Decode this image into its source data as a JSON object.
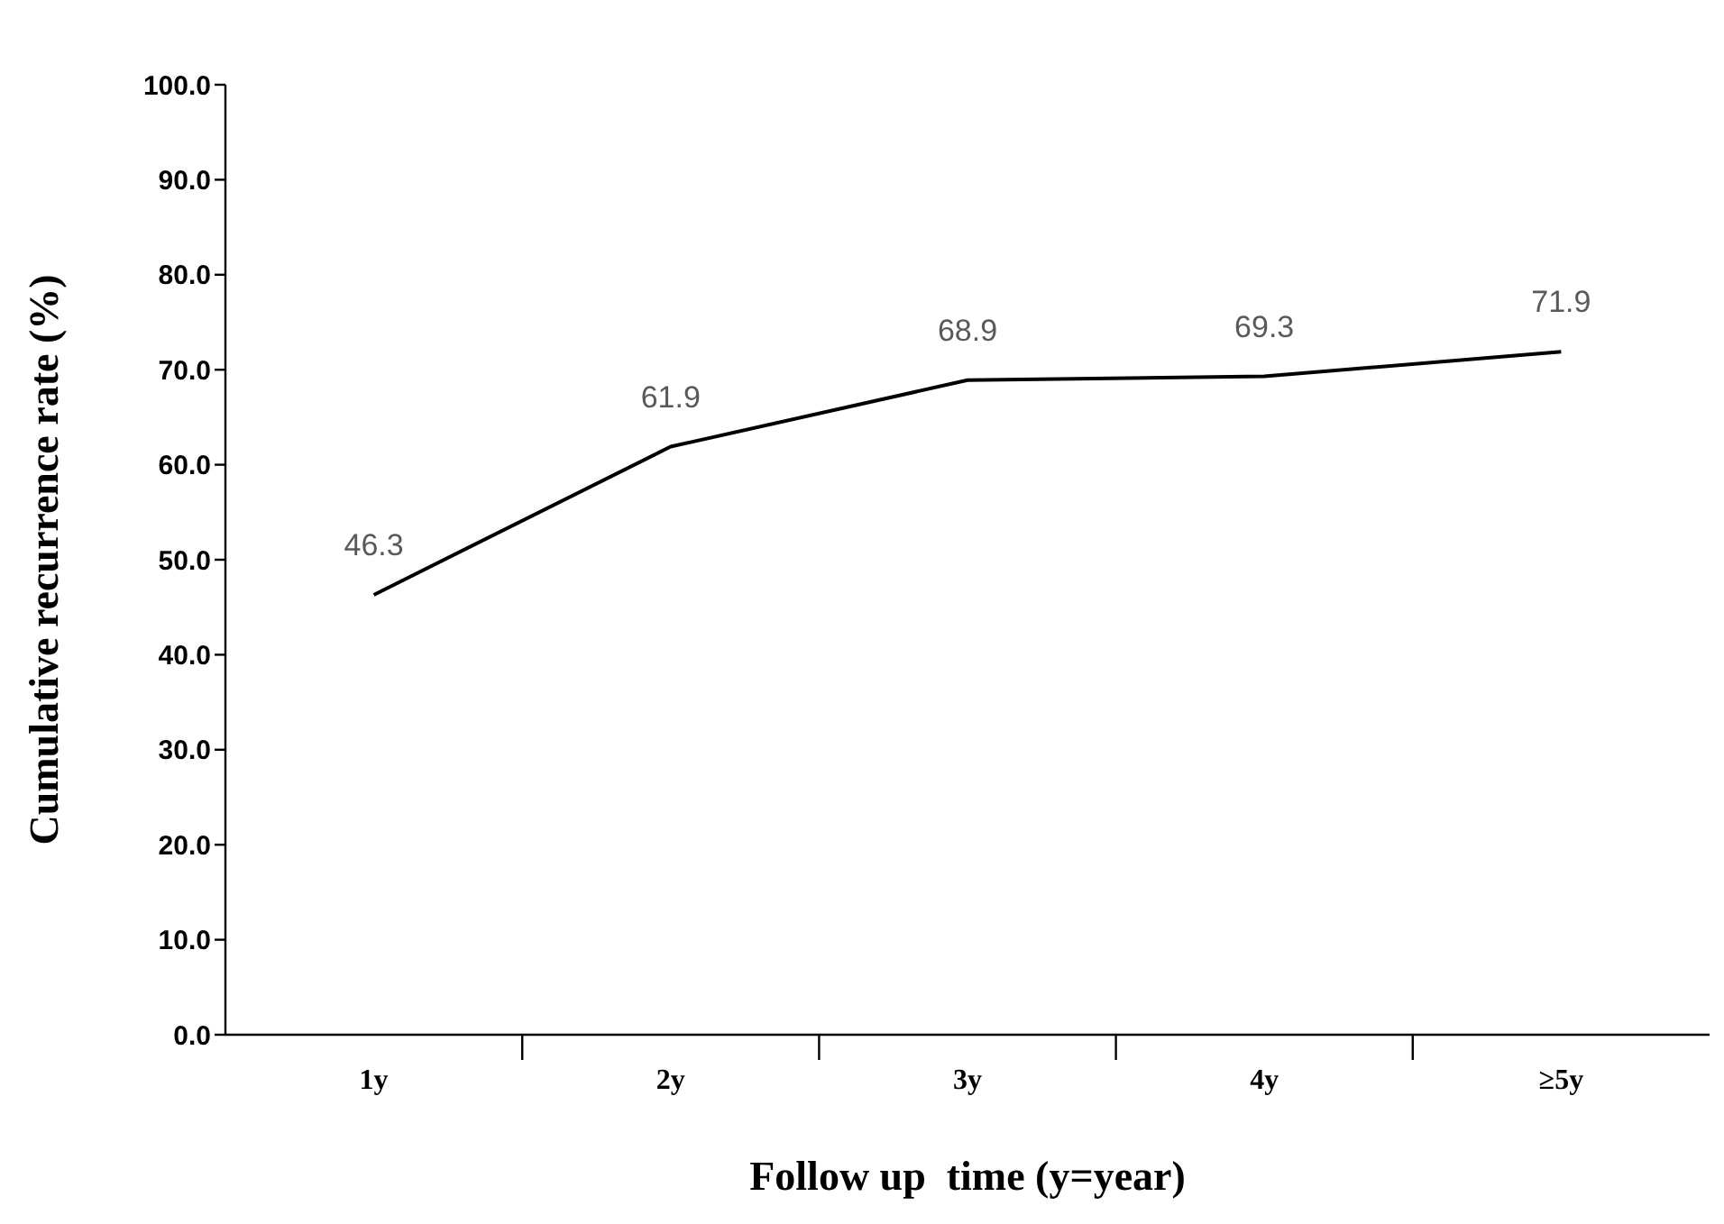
{
  "chart_data": {
    "type": "line",
    "xlabel": "Follow up  time (y=year)",
    "ylabel": "Cumulative recurrence rate (%)",
    "categories": [
      "1y",
      "2y",
      "3y",
      "4y",
      "≥5y"
    ],
    "series": [
      {
        "color": "#000000",
        "values": [
          46.3,
          61.9,
          68.9,
          69.3,
          71.9
        ]
      }
    ],
    "ylim": [
      0,
      100
    ],
    "yticks": [
      {
        "value": 0,
        "label": "0.0"
      },
      {
        "value": 10,
        "label": "10.0"
      },
      {
        "value": 20,
        "label": "20.0"
      },
      {
        "value": 30,
        "label": "30.0"
      },
      {
        "value": 40,
        "label": "40.0"
      },
      {
        "value": 50,
        "label": "50.0"
      },
      {
        "value": 60,
        "label": "60.0"
      },
      {
        "value": 70,
        "label": "70.0"
      },
      {
        "value": 80,
        "label": "80.0"
      },
      {
        "value": 90,
        "label": "90.0"
      },
      {
        "value": 100,
        "label": "100.0"
      }
    ],
    "data_labels": true,
    "grid": false,
    "legend": false,
    "marker": "none",
    "line_style": "solid"
  }
}
